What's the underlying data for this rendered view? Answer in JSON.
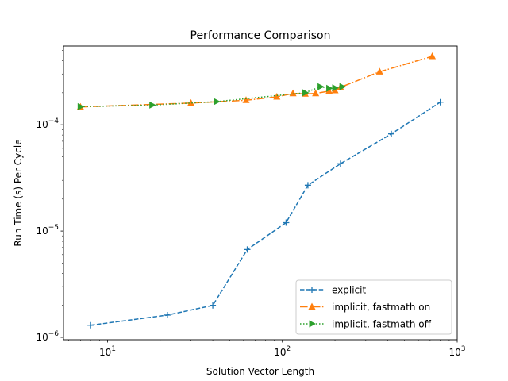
{
  "chart_data": {
    "type": "line",
    "title": "Performance Comparison",
    "xlabel": "Solution Vector Length",
    "ylabel": "Run Time (s) Per Cycle",
    "xscale": "log",
    "yscale": "log",
    "xlim": [
      5.6,
      1000
    ],
    "ylim": [
      9.5e-07,
      0.00055
    ],
    "x_ticks": [
      {
        "value": 10,
        "base": "10",
        "exp": "1"
      },
      {
        "value": 100,
        "base": "10",
        "exp": "2"
      },
      {
        "value": 1000,
        "base": "10",
        "exp": "3"
      }
    ],
    "y_ticks": [
      {
        "value": 1e-06,
        "base": "10",
        "exp": "−6"
      },
      {
        "value": 1e-05,
        "base": "10",
        "exp": "−5"
      },
      {
        "value": 0.0001,
        "base": "10",
        "exp": "−4"
      }
    ],
    "grid": false,
    "legend_position": "lower-right",
    "series": [
      {
        "name": "explicit",
        "color": "#1f77b4",
        "linestyle": "dashed",
        "marker": "plus",
        "x": [
          8,
          22,
          40,
          63,
          105,
          140,
          215,
          420,
          800
        ],
        "y": [
          1.3e-06,
          1.62e-06,
          2e-06,
          6.7e-06,
          1.2e-05,
          2.7e-05,
          4.3e-05,
          8.2e-05,
          0.000163
        ]
      },
      {
        "name": "implicit, fastmath on",
        "color": "#ff7f0e",
        "linestyle": "dashdot",
        "marker": "triangle-up",
        "x": [
          7,
          30,
          62,
          93,
          115,
          135,
          155,
          185,
          200,
          215,
          360,
          720
        ],
        "y": [
          0.000147,
          0.00016,
          0.00017,
          0.000183,
          0.000197,
          0.000195,
          0.000197,
          0.000207,
          0.00021,
          0.000225,
          0.000315,
          0.00044
        ]
      },
      {
        "name": "implicit, fastmath off",
        "color": "#2ca02c",
        "linestyle": "dotted",
        "marker": "triangle-right",
        "x": [
          7,
          18,
          42,
          135,
          165,
          185,
          200,
          220
        ],
        "y": [
          0.000148,
          0.000153,
          0.000165,
          0.0002,
          0.000228,
          0.00022,
          0.000222,
          0.000228
        ]
      }
    ]
  }
}
